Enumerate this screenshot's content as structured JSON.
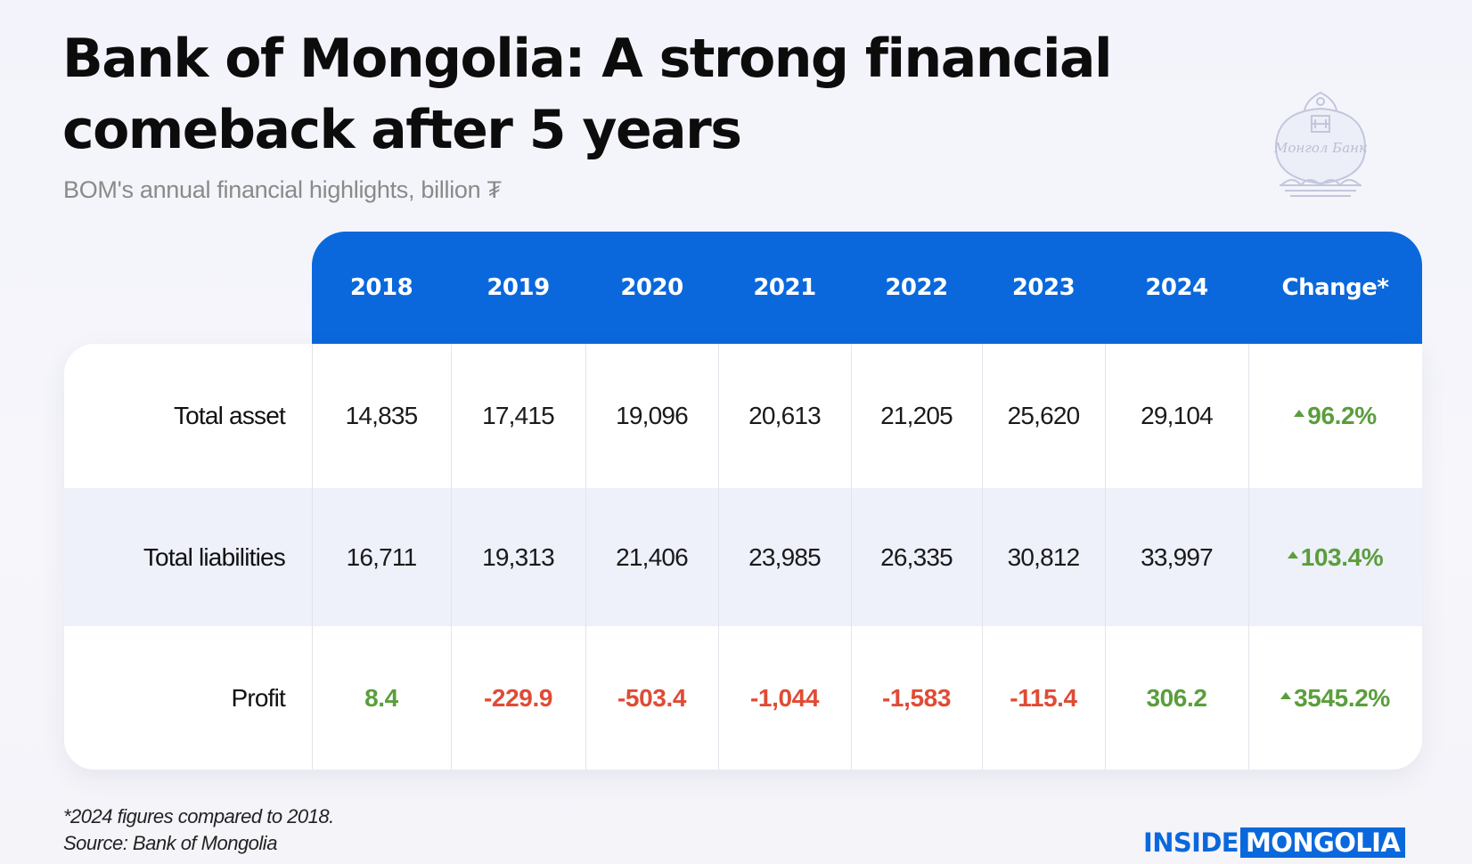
{
  "title": "Bank of Mongolia: A strong financial comeback after 5 years",
  "subtitle": "BOM's annual financial highlights, billion ₮",
  "emblem": {
    "icon": "bank-of-mongolia-emblem",
    "text": "Монгол Банк"
  },
  "colors": {
    "header": "#0a68dc",
    "positive": "#5a9e3c",
    "negative": "#e04b35"
  },
  "chart_data": {
    "type": "table",
    "title": "Bank of Mongolia: A strong financial comeback after 5 years",
    "subtitle": "BOM's annual financial highlights, billion ₮",
    "columns": [
      "2018",
      "2019",
      "2020",
      "2021",
      "2022",
      "2023",
      "2024",
      "Change*"
    ],
    "rows": [
      {
        "label": "Total asset",
        "values": [
          "14,835",
          "17,415",
          "19,096",
          "20,613",
          "21,205",
          "25,620",
          "29,104"
        ],
        "change": "96.2%",
        "change_direction": "up"
      },
      {
        "label": "Total liabilities",
        "values": [
          "16,711",
          "19,313",
          "21,406",
          "23,985",
          "26,335",
          "30,812",
          "33,997"
        ],
        "change": "103.4%",
        "change_direction": "up"
      },
      {
        "label": "Profit",
        "values": [
          "8.4",
          "-229.9",
          "-503.4",
          "-1,044",
          "-1,583",
          "-115.4",
          "306.2"
        ],
        "change": "3545.2%",
        "change_direction": "up"
      }
    ]
  },
  "footnote": "*2024 figures compared to 2018.",
  "source": "Source: Bank of Mongolia",
  "brand": {
    "part1": "INSIDE",
    "part2": "MONGOLIA"
  }
}
